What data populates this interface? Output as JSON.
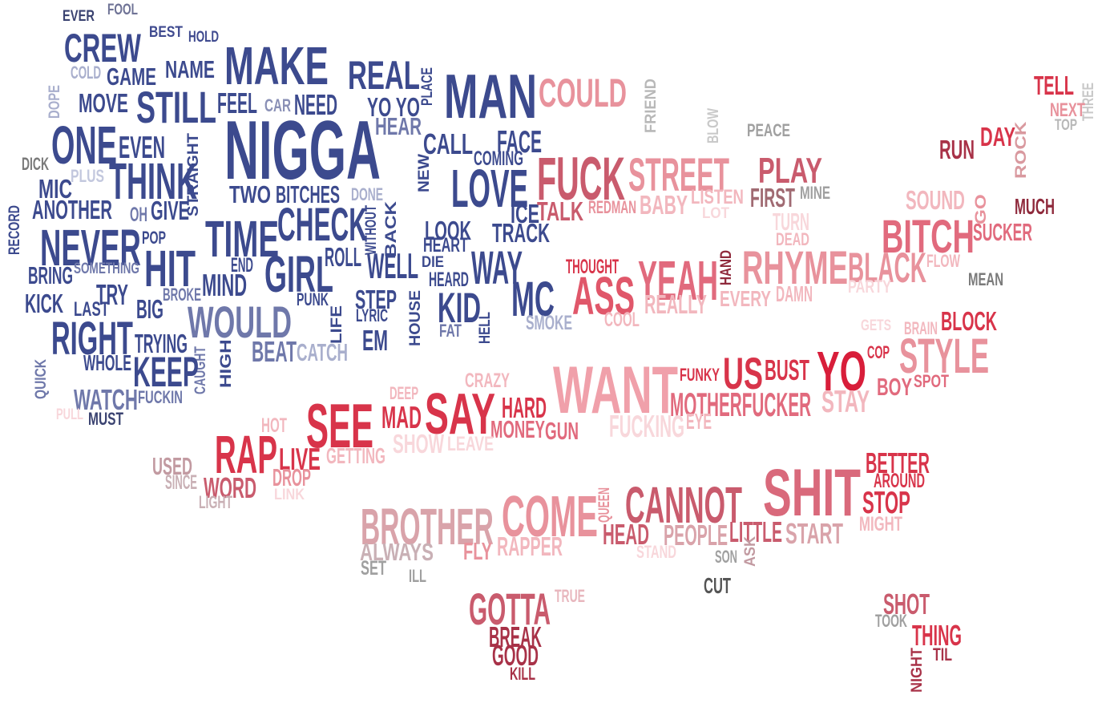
{
  "words": [
    {
      "text": "EVER",
      "color": "#3b4371"
    },
    {
      "text": "FOOL",
      "color": "#6f7396"
    },
    {
      "text": "BEST",
      "color": "#3f4a8f"
    },
    {
      "text": "HOLD",
      "color": "#3f4a8f"
    },
    {
      "text": "CREW",
      "color": "#3c4a8e"
    },
    {
      "text": "COLD",
      "color": "#a9afcd"
    },
    {
      "text": "GAME",
      "color": "#3c4a8e"
    },
    {
      "text": "NAME",
      "color": "#3c4a8e"
    },
    {
      "text": "MAKE",
      "color": "#3c4a8e"
    },
    {
      "text": "REAL",
      "color": "#3c4a8e"
    },
    {
      "text": "PLACE",
      "color": "#3c4a8e"
    },
    {
      "text": "MAN",
      "color": "#3c4a8e"
    },
    {
      "text": "COULD",
      "color": "#e8929c"
    },
    {
      "text": "FRIEND",
      "color": "#b8b8b8"
    },
    {
      "text": "TELL",
      "color": "#d8344a"
    },
    {
      "text": "THREE",
      "color": "#c9c9c9"
    },
    {
      "text": "NEXT",
      "color": "#e8929c"
    },
    {
      "text": "TOP",
      "color": "#b8b8b8"
    },
    {
      "text": "DOPE",
      "color": "#a9afcd"
    },
    {
      "text": "MOVE",
      "color": "#3c4a8e"
    },
    {
      "text": "STILL",
      "color": "#3c4a8e"
    },
    {
      "text": "FEEL",
      "color": "#3c4a8e"
    },
    {
      "text": "CAR",
      "color": "#8a90b6"
    },
    {
      "text": "NEED",
      "color": "#3c4a8e"
    },
    {
      "text": "YO YO",
      "color": "#3c4a8e"
    },
    {
      "text": "HEAR",
      "color": "#6f78aa"
    },
    {
      "text": "BLOW",
      "color": "#c9c9c9"
    },
    {
      "text": "PEACE",
      "color": "#a0a0a0"
    },
    {
      "text": "ONE",
      "color": "#3c4a8e"
    },
    {
      "text": "EVEN",
      "color": "#3c4a8e"
    },
    {
      "text": "NIGGA",
      "color": "#3c4a8e"
    },
    {
      "text": "CALL",
      "color": "#3c4a8e"
    },
    {
      "text": "FACE",
      "color": "#3c4a8e"
    },
    {
      "text": "COMING",
      "color": "#3c4a8e"
    },
    {
      "text": "DAY",
      "color": "#d8344a"
    },
    {
      "text": "RUN",
      "color": "#a83248"
    },
    {
      "text": "ROCK",
      "color": "#d9999f"
    },
    {
      "text": "DICK",
      "color": "#7a7a7a"
    },
    {
      "text": "PLUS",
      "color": "#c3c8de"
    },
    {
      "text": "THINK",
      "color": "#3c4a8e"
    },
    {
      "text": "STRAIGHT",
      "color": "#3c4a8e"
    },
    {
      "text": "NEW",
      "color": "#3c4a8e"
    },
    {
      "text": "FUCK",
      "color": "#c95b6d"
    },
    {
      "text": "STREET",
      "color": "#e8929c"
    },
    {
      "text": "PLAY",
      "color": "#c95b6d"
    },
    {
      "text": "MIC",
      "color": "#3c4a8e"
    },
    {
      "text": "TWO",
      "color": "#3c4a8e"
    },
    {
      "text": "BITCHES",
      "color": "#3c4a8e"
    },
    {
      "text": "DONE",
      "color": "#a9afcd"
    },
    {
      "text": "BACK",
      "color": "#3c4a8e"
    },
    {
      "text": "LOVE",
      "color": "#3c4a8e"
    },
    {
      "text": "REDMAN",
      "color": "#e8929c"
    },
    {
      "text": "BABY",
      "color": "#f2b7be"
    },
    {
      "text": "LISTEN",
      "color": "#f2b7be"
    },
    {
      "text": "FIRST",
      "color": "#a06a72"
    },
    {
      "text": "MINE",
      "color": "#a0a0a0"
    },
    {
      "text": "GO",
      "color": "#e8929c"
    },
    {
      "text": "SOUND",
      "color": "#f2b7be"
    },
    {
      "text": "MUCH",
      "color": "#8f2a3c"
    },
    {
      "text": "ANOTHER",
      "color": "#3c4a8e"
    },
    {
      "text": "OH",
      "color": "#6f78aa"
    },
    {
      "text": "GIVE",
      "color": "#3c4a8e"
    },
    {
      "text": "ICE",
      "color": "#3c4a8e"
    },
    {
      "text": "TALK",
      "color": "#c95b6d"
    },
    {
      "text": "LOT",
      "color": "#f8d7db"
    },
    {
      "text": "TURN",
      "color": "#f8d7db"
    },
    {
      "text": "RECORD",
      "color": "#3c4a8e"
    },
    {
      "text": "TIME",
      "color": "#3c4a8e"
    },
    {
      "text": "CHECK",
      "color": "#3c4a8e"
    },
    {
      "text": "WITHOUT",
      "color": "#3c4a8e"
    },
    {
      "text": "LOOK",
      "color": "#3c4a8e"
    },
    {
      "text": "TRACK",
      "color": "#3c4a8e"
    },
    {
      "text": "DEAD",
      "color": "#f2b7be"
    },
    {
      "text": "BITCH",
      "color": "#e16a7d"
    },
    {
      "text": "SUCKER",
      "color": "#e16a7d"
    },
    {
      "text": "NEVER",
      "color": "#3c4a8e"
    },
    {
      "text": "POP",
      "color": "#3c4a8e"
    },
    {
      "text": "HEART",
      "color": "#3c4a8e"
    },
    {
      "text": "ROLL",
      "color": "#3c4a8e"
    },
    {
      "text": "HIT",
      "color": "#3c4a8e"
    },
    {
      "text": "END",
      "color": "#3c4a8e"
    },
    {
      "text": "GIRL",
      "color": "#3c4a8e"
    },
    {
      "text": "WELL",
      "color": "#3c4a8e"
    },
    {
      "text": "DIE",
      "color": "#3c4a8e"
    },
    {
      "text": "WAY",
      "color": "#3c4a8e"
    },
    {
      "text": "HAND",
      "color": "#8f2a3c"
    },
    {
      "text": "FLOW",
      "color": "#f2b7be"
    },
    {
      "text": "SOMETHING",
      "color": "#6f78aa"
    },
    {
      "text": "BRING",
      "color": "#3c4a8e"
    },
    {
      "text": "HEARD",
      "color": "#3c4a8e"
    },
    {
      "text": "THOUGHT",
      "color": "#d8344a"
    },
    {
      "text": "RHYME",
      "color": "#e8929c"
    },
    {
      "text": "BLACK",
      "color": "#e8929c"
    },
    {
      "text": "MEAN",
      "color": "#7a7a7a"
    },
    {
      "text": "MIND",
      "color": "#3c4a8e"
    },
    {
      "text": "TRY",
      "color": "#3c4a8e"
    },
    {
      "text": "BROKE",
      "color": "#6f78aa"
    },
    {
      "text": "PUNK",
      "color": "#3c4a8e"
    },
    {
      "text": "STEP",
      "color": "#3c4a8e"
    },
    {
      "text": "KID",
      "color": "#3c4a8e"
    },
    {
      "text": "MC",
      "color": "#3c4a8e"
    },
    {
      "text": "ASS",
      "color": "#e0576a"
    },
    {
      "text": "YEAH",
      "color": "#e16a7d"
    },
    {
      "text": "PARTY",
      "color": "#f8d7db"
    },
    {
      "text": "KICK",
      "color": "#3c4a8e"
    },
    {
      "text": "LAST",
      "color": "#3c4a8e"
    },
    {
      "text": "BIG",
      "color": "#3c4a8e"
    },
    {
      "text": "HOUSE",
      "color": "#3c4a8e"
    },
    {
      "text": "LYRIC",
      "color": "#3c4a8e"
    },
    {
      "text": "DAMN",
      "color": "#f2b7be"
    },
    {
      "text": "EVERY",
      "color": "#f2b7be"
    },
    {
      "text": "REALLY",
      "color": "#f2b7be"
    },
    {
      "text": "LIFE",
      "color": "#3c4a8e"
    },
    {
      "text": "HELL",
      "color": "#3c4a8e"
    },
    {
      "text": "WOULD",
      "color": "#6f78aa"
    },
    {
      "text": "SMOKE",
      "color": "#a9afcd"
    },
    {
      "text": "COOL",
      "color": "#f2b7be"
    },
    {
      "text": "GETS",
      "color": "#f8d7db"
    },
    {
      "text": "BRAIN",
      "color": "#f2b7be"
    },
    {
      "text": "BLOCK",
      "color": "#d8344a"
    },
    {
      "text": "RIGHT",
      "color": "#3c4a8e"
    },
    {
      "text": "TRYING",
      "color": "#3c4a8e"
    },
    {
      "text": "FAT",
      "color": "#6f78aa"
    },
    {
      "text": "EM",
      "color": "#3c4a8e"
    },
    {
      "text": "BEAT",
      "color": "#6f78aa"
    },
    {
      "text": "CATCH",
      "color": "#a9afcd"
    },
    {
      "text": "CAUGHT",
      "color": "#6f78aa"
    },
    {
      "text": "HIGH",
      "color": "#3c4a8e"
    },
    {
      "text": "COP",
      "color": "#d8344a"
    },
    {
      "text": "STYLE",
      "color": "#e8929c"
    },
    {
      "text": "WHOLE",
      "color": "#3c4a8e"
    },
    {
      "text": "KEEP",
      "color": "#3c4a8e"
    },
    {
      "text": "QUICK",
      "color": "#6f78aa"
    },
    {
      "text": "FUNKY",
      "color": "#d8344a"
    },
    {
      "text": "US",
      "color": "#d8344a"
    },
    {
      "text": "BUST",
      "color": "#d8344a"
    },
    {
      "text": "YO",
      "color": "#d81e3a"
    },
    {
      "text": "BOY",
      "color": "#e16a7d"
    },
    {
      "text": "SPOT",
      "color": "#e16a7d"
    },
    {
      "text": "CRAZY",
      "color": "#f2b7be"
    },
    {
      "text": "WANT",
      "color": "#f0a0aa"
    },
    {
      "text": "WATCH",
      "color": "#6f78aa"
    },
    {
      "text": "FUCKIN",
      "color": "#6f78aa"
    },
    {
      "text": "DEEP",
      "color": "#f2b7be"
    },
    {
      "text": "MOTHERFUCKER",
      "color": "#e16a7d"
    },
    {
      "text": "STAY",
      "color": "#f2b7be"
    },
    {
      "text": "PULL",
      "color": "#f8d7db"
    },
    {
      "text": "MUST",
      "color": "#3b4371"
    },
    {
      "text": "SEE",
      "color": "#d8344a"
    },
    {
      "text": "MAD",
      "color": "#d8344a"
    },
    {
      "text": "SAY",
      "color": "#d8344a"
    },
    {
      "text": "HARD",
      "color": "#d8344a"
    },
    {
      "text": "EYE",
      "color": "#f2b7be"
    },
    {
      "text": "HOT",
      "color": "#f2b7be"
    },
    {
      "text": "MONEY",
      "color": "#e16a7d"
    },
    {
      "text": "GUN",
      "color": "#e16a7d"
    },
    {
      "text": "FUCKING",
      "color": "#f8d7db"
    },
    {
      "text": "SHOW",
      "color": "#f8d7db"
    },
    {
      "text": "LEAVE",
      "color": "#f8d7db"
    },
    {
      "text": "RAP",
      "color": "#d8344a"
    },
    {
      "text": "LIVE",
      "color": "#d8344a"
    },
    {
      "text": "GETTING",
      "color": "#f2b7be"
    },
    {
      "text": "USED",
      "color": "#c29aa1"
    },
    {
      "text": "SINCE",
      "color": "#c9b0b5"
    },
    {
      "text": "WORD",
      "color": "#c95b6d"
    },
    {
      "text": "DROP",
      "color": "#e8929c"
    },
    {
      "text": "LIGHT",
      "color": "#c9b0b5"
    },
    {
      "text": "LINK",
      "color": "#f8d7db"
    },
    {
      "text": "BETTER",
      "color": "#d8344a"
    },
    {
      "text": "AROUND",
      "color": "#d8344a"
    },
    {
      "text": "SHIT",
      "color": "#d9697b"
    },
    {
      "text": "STOP",
      "color": "#d8344a"
    },
    {
      "text": "MIGHT",
      "color": "#f2b7be"
    },
    {
      "text": "CANNOT",
      "color": "#c95b6d"
    },
    {
      "text": "COME",
      "color": "#e8929c"
    },
    {
      "text": "QUEEN",
      "color": "#e8929c"
    },
    {
      "text": "BROTHER",
      "color": "#d9a3aa"
    },
    {
      "text": "HEAD",
      "color": "#c95b6d"
    },
    {
      "text": "PEOPLE",
      "color": "#d9a3aa"
    },
    {
      "text": "LITTLE",
      "color": "#c95b6d"
    },
    {
      "text": "START",
      "color": "#d9a3aa"
    },
    {
      "text": "ALWAYS",
      "color": "#c9b0b5"
    },
    {
      "text": "FLY",
      "color": "#e8929c"
    },
    {
      "text": "RAPPER",
      "color": "#f2b7be"
    },
    {
      "text": "STAND",
      "color": "#f8d7db"
    },
    {
      "text": "SON",
      "color": "#a0a0a0"
    },
    {
      "text": "ASK",
      "color": "#c29aa1"
    },
    {
      "text": "SET",
      "color": "#a0a0a0"
    },
    {
      "text": "ILL",
      "color": "#a0a0a0"
    },
    {
      "text": "CUT",
      "color": "#555555"
    },
    {
      "text": "TRUE",
      "color": "#e8b7be"
    },
    {
      "text": "GOTTA",
      "color": "#c95b6d"
    },
    {
      "text": "BREAK",
      "color": "#a83248"
    },
    {
      "text": "GOOD",
      "color": "#a83248"
    },
    {
      "text": "KILL",
      "color": "#a83248"
    },
    {
      "text": "SHOT",
      "color": "#c95b6d"
    },
    {
      "text": "TOOK",
      "color": "#a0a0a0"
    },
    {
      "text": "THING",
      "color": "#d8344a"
    },
    {
      "text": "NIGHT",
      "color": "#a83248"
    },
    {
      "text": "TIL",
      "color": "#a83248"
    }
  ]
}
